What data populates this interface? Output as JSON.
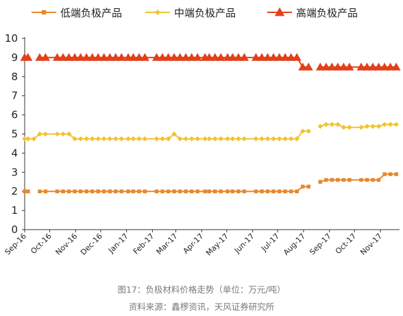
{
  "chart_data": {
    "type": "line",
    "x_dates": [
      "2016-09-01",
      "2016-09-05",
      "2016-09-12",
      "2016-09-19",
      "2016-09-26",
      "2016-10-10",
      "2016-10-17",
      "2016-10-24",
      "2016-10-31",
      "2016-11-07",
      "2016-11-14",
      "2016-11-21",
      "2016-11-28",
      "2016-12-05",
      "2016-12-12",
      "2016-12-19",
      "2016-12-26",
      "2017-01-03",
      "2017-01-09",
      "2017-01-16",
      "2017-01-23",
      "2017-02-06",
      "2017-02-13",
      "2017-02-20",
      "2017-02-27",
      "2017-03-06",
      "2017-03-13",
      "2017-03-20",
      "2017-03-27",
      "2017-04-05",
      "2017-04-10",
      "2017-04-17",
      "2017-04-24",
      "2017-05-02",
      "2017-05-08",
      "2017-05-15",
      "2017-05-22",
      "2017-06-05",
      "2017-06-12",
      "2017-06-19",
      "2017-06-26",
      "2017-07-03",
      "2017-07-10",
      "2017-07-17",
      "2017-07-24",
      "2017-07-31",
      "2017-08-07",
      "2017-08-14",
      "2017-08-21",
      "2017-08-28",
      "2017-09-04",
      "2017-09-11",
      "2017-09-18",
      "2017-09-25",
      "2017-10-09",
      "2017-10-16",
      "2017-10-23",
      "2017-10-30",
      "2017-11-06",
      "2017-11-13",
      "2017-11-20"
    ],
    "x_tick_labels": [
      "Sep-16",
      "Oct-16",
      "Nov-16",
      "Dec-16",
      "Jan-17",
      "Feb-17",
      "Mar-17",
      "Apr-17",
      "May-17",
      "Jun-17",
      "Jul-17",
      "Aug-17",
      "Sep-17",
      "Oct-17",
      "Nov-17"
    ],
    "x_tick_dates": [
      "2016-09-01",
      "2016-10-01",
      "2016-11-01",
      "2016-12-01",
      "2017-01-01",
      "2017-02-01",
      "2017-03-01",
      "2017-04-01",
      "2017-05-01",
      "2017-06-01",
      "2017-07-01",
      "2017-08-01",
      "2017-09-01",
      "2017-10-01",
      "2017-11-01"
    ],
    "ylim": [
      0,
      10
    ],
    "y_ticks": [
      0,
      1,
      2,
      3,
      4,
      5,
      6,
      7,
      8,
      9,
      10
    ],
    "series": [
      {
        "name": "低端负极产品",
        "color": "#E8872C",
        "marker": "square",
        "values": [
          2.0,
          2.0,
          null,
          2.0,
          2.0,
          2.0,
          2.0,
          2.0,
          2.0,
          2.0,
          2.0,
          2.0,
          2.0,
          2.0,
          2.0,
          2.0,
          2.0,
          2.0,
          2.0,
          2.0,
          2.0,
          2.0,
          2.0,
          2.0,
          2.0,
          2.0,
          2.0,
          2.0,
          2.0,
          2.0,
          2.0,
          2.0,
          2.0,
          2.0,
          2.0,
          2.0,
          2.0,
          2.0,
          2.0,
          2.0,
          2.0,
          2.0,
          2.0,
          2.0,
          2.0,
          2.25,
          2.25,
          null,
          2.5,
          2.6,
          2.6,
          2.6,
          2.6,
          2.6,
          2.6,
          2.6,
          2.6,
          2.6,
          2.9,
          2.9,
          2.9
        ]
      },
      {
        "name": "中端负极产品",
        "color": "#F2C230",
        "marker": "diamond",
        "values": [
          4.75,
          4.75,
          4.75,
          5.0,
          5.0,
          5.0,
          5.0,
          5.0,
          4.75,
          4.75,
          4.75,
          4.75,
          4.75,
          4.75,
          4.75,
          4.75,
          4.75,
          4.75,
          4.75,
          4.75,
          4.75,
          4.75,
          4.75,
          4.75,
          5.0,
          4.75,
          4.75,
          4.75,
          4.75,
          4.75,
          4.75,
          4.75,
          4.75,
          4.75,
          4.75,
          4.75,
          4.75,
          4.75,
          4.75,
          4.75,
          4.75,
          4.75,
          4.75,
          4.75,
          4.75,
          5.15,
          5.15,
          null,
          5.4,
          5.5,
          5.5,
          5.5,
          5.35,
          5.35,
          5.35,
          5.4,
          5.4,
          5.4,
          5.5,
          5.5,
          5.5
        ]
      },
      {
        "name": "高端负极产品",
        "color": "#E2401B",
        "marker": "triangle",
        "values": [
          9.0,
          9.0,
          null,
          9.0,
          9.0,
          9.0,
          9.0,
          9.0,
          9.0,
          9.0,
          9.0,
          9.0,
          9.0,
          9.0,
          9.0,
          9.0,
          9.0,
          9.0,
          9.0,
          9.0,
          9.0,
          9.0,
          9.0,
          9.0,
          9.0,
          9.0,
          9.0,
          9.0,
          9.0,
          9.0,
          9.0,
          9.0,
          9.0,
          9.0,
          9.0,
          9.0,
          9.0,
          9.0,
          9.0,
          9.0,
          9.0,
          9.0,
          9.0,
          9.0,
          9.0,
          8.5,
          8.5,
          null,
          8.5,
          8.5,
          8.5,
          8.5,
          8.5,
          8.5,
          8.5,
          8.5,
          8.5,
          8.5,
          8.5,
          8.5,
          8.5
        ]
      }
    ],
    "legend_position": "top",
    "grid": false
  },
  "captions": {
    "figure_title": "图17：负极材料价格走势（单位：万元/吨）",
    "source": "资料来源：鑫椤资讯，天风证券研究所"
  }
}
